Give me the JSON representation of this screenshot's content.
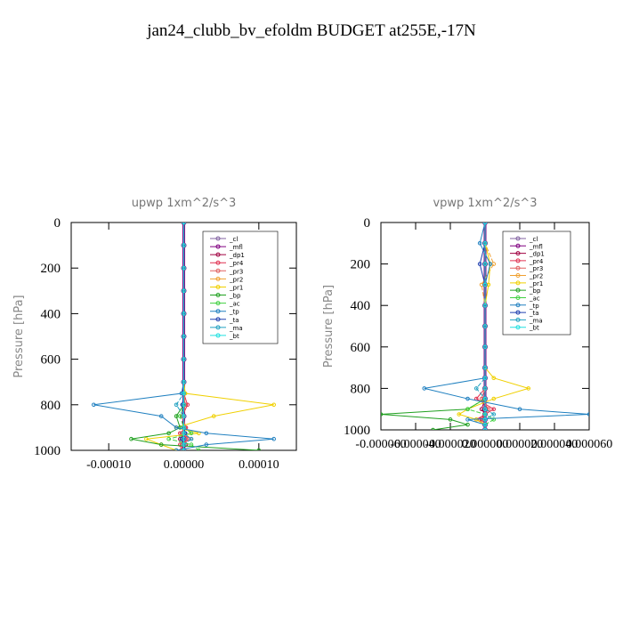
{
  "title": "jan24_clubb_bv_efoldm  BUDGET at255E,-17N",
  "chart_data": [
    {
      "type": "line",
      "title": "upwp   1xm^2/s^3",
      "y_label": "Pressure [hPa]",
      "legend": "upper right",
      "xlim": [
        -0.00015,
        0.00015
      ],
      "xticks": [
        {
          "value": -0.0001,
          "label": "-0.00010"
        },
        {
          "value": 0,
          "label": "0.00000"
        },
        {
          "value": 0.0001,
          "label": "0.00010"
        }
      ],
      "ylim": [
        1000,
        0
      ],
      "yticks": [
        0,
        200,
        400,
        600,
        800,
        1000
      ],
      "y": [
        0,
        100,
        200,
        300,
        400,
        500,
        600,
        700,
        750,
        800,
        850,
        900,
        925,
        950,
        975,
        1000
      ],
      "series": [
        {
          "name": "_cl",
          "color": "#8060a0",
          "values": [
            0,
            0,
            0,
            0,
            0,
            0,
            0,
            0,
            0,
            0,
            0,
            0,
            0,
            0,
            0,
            0
          ]
        },
        {
          "name": "_mfl",
          "color": "#800080",
          "values": [
            0,
            0,
            0,
            0,
            0,
            0,
            0,
            0,
            0,
            0,
            0,
            0,
            0,
            0,
            0,
            0
          ]
        },
        {
          "name": "_dp1",
          "color": "#a00040",
          "values": [
            0,
            0,
            0,
            0,
            0,
            0,
            0,
            0,
            0,
            0,
            0,
            1e-06,
            0,
            -5e-06,
            3e-06,
            0
          ]
        },
        {
          "name": "_pr4",
          "color": "#e03050",
          "values": [
            0,
            0,
            0,
            0,
            0,
            0,
            0,
            0,
            0,
            5e-06,
            -2e-06,
            3e-06,
            -5e-06,
            1e-05,
            -5e-06,
            -3e-06
          ]
        },
        {
          "name": "_pr3",
          "color": "#e06060",
          "values": [
            0,
            0,
            0,
            0,
            0,
            0,
            0,
            0,
            0,
            2e-06,
            -1e-06,
            2e-06,
            -3e-06,
            6e-06,
            -3e-06,
            -2e-06
          ]
        },
        {
          "name": "_pr2",
          "color": "#f0a030",
          "values": [
            0,
            0,
            0,
            0,
            0,
            0,
            0,
            0,
            1e-06,
            0,
            0,
            0,
            0,
            -3e-06,
            0,
            0
          ]
        },
        {
          "name": "_pr1",
          "color": "#f0d000",
          "values": [
            0,
            0,
            0,
            0,
            0,
            0,
            0,
            0,
            2e-06,
            0.00012,
            4e-05,
            -1e-05,
            2e-05,
            -5e-05,
            -3e-05,
            -1e-05
          ]
        },
        {
          "name": "_bp",
          "color": "#20a020",
          "values": [
            0,
            0,
            0,
            0,
            0,
            0,
            0,
            0,
            0,
            0,
            -1e-05,
            -5e-06,
            -2e-05,
            -7e-05,
            -3e-05,
            0.0001
          ]
        },
        {
          "name": "_ac",
          "color": "#40d040",
          "values": [
            0,
            0,
            0,
            0,
            0,
            0,
            0,
            0,
            0,
            0,
            -5e-06,
            0,
            1e-05,
            -2e-05,
            1e-05,
            2e-05
          ]
        },
        {
          "name": "_tp",
          "color": "#2080c0",
          "values": [
            0,
            0,
            0,
            0,
            0,
            0,
            0,
            0,
            -3e-06,
            -0.00012,
            -3e-05,
            -1e-05,
            3e-05,
            0.00012,
            3e-05,
            -1e-05
          ]
        },
        {
          "name": "_ta",
          "color": "#2040b0",
          "values": [
            0,
            0,
            0,
            0,
            0,
            0,
            0,
            0,
            0,
            -2e-06,
            0,
            0,
            2e-06,
            -3e-06,
            0,
            0
          ]
        },
        {
          "name": "_ma",
          "color": "#20a0c0",
          "values": [
            0,
            0,
            0,
            0,
            0,
            0,
            0,
            0,
            0,
            -1e-05,
            0,
            0,
            0,
            1e-05,
            0,
            0
          ]
        },
        {
          "name": "_bt",
          "color": "#20e0e0",
          "values": [
            0,
            0,
            0,
            0,
            0,
            0,
            0,
            0,
            0,
            0,
            0,
            0,
            0,
            0,
            0,
            0
          ]
        }
      ]
    },
    {
      "type": "line",
      "title": "vpwp   1xm^2/s^3",
      "y_label": "Pressure [hPa]",
      "legend": "upper right",
      "xlim": [
        -6e-05,
        6e-05
      ],
      "xticks": [
        {
          "value": -6e-05,
          "label": "-0.000060"
        },
        {
          "value": -4e-05,
          "label": "-0.000040"
        },
        {
          "value": -2e-05,
          "label": "-0.000020"
        },
        {
          "value": 0,
          "label": "0.000000"
        },
        {
          "value": 2e-05,
          "label": "0.000020"
        },
        {
          "value": 4e-05,
          "label": "0.000040"
        },
        {
          "value": 6e-05,
          "label": "0.000060"
        }
      ],
      "ylim": [
        1000,
        0
      ],
      "yticks": [
        0,
        200,
        400,
        600,
        800,
        1000
      ],
      "y": [
        0,
        100,
        200,
        300,
        400,
        500,
        600,
        700,
        750,
        800,
        850,
        900,
        925,
        950,
        975,
        1000
      ],
      "series": [
        {
          "name": "_cl",
          "color": "#8060a0",
          "values": [
            0,
            0,
            0,
            0,
            0,
            0,
            0,
            0,
            0,
            0,
            0,
            0,
            0,
            0,
            0,
            0
          ]
        },
        {
          "name": "_mfl",
          "color": "#800080",
          "values": [
            0,
            0,
            0,
            0,
            0,
            0,
            0,
            0,
            0,
            0,
            0,
            0,
            0,
            0,
            0,
            0
          ]
        },
        {
          "name": "_dp1",
          "color": "#a00040",
          "values": [
            0,
            0,
            0,
            0,
            0,
            0,
            0,
            0,
            0,
            0,
            0,
            -2e-06,
            0,
            -3e-06,
            0,
            0
          ]
        },
        {
          "name": "_pr4",
          "color": "#e03050",
          "values": [
            0,
            0,
            0,
            0,
            0,
            0,
            0,
            0,
            0,
            0,
            -5e-06,
            5e-06,
            0,
            -5e-06,
            0,
            0
          ]
        },
        {
          "name": "_pr3",
          "color": "#e06060",
          "values": [
            0,
            0,
            0,
            0,
            0,
            0,
            0,
            0,
            0,
            0,
            -2e-06,
            2e-06,
            0,
            -2e-06,
            0,
            0
          ]
        },
        {
          "name": "_pr2",
          "color": "#f0a030",
          "values": [
            0,
            0,
            5e-06,
            -2e-06,
            0,
            0,
            0,
            0,
            0,
            0,
            0,
            0,
            0,
            0,
            0,
            0
          ]
        },
        {
          "name": "_pr1",
          "color": "#f0d000",
          "values": [
            0,
            0,
            3e-06,
            2e-06,
            0,
            0,
            0,
            0,
            5e-06,
            2.5e-05,
            5e-06,
            -1e-05,
            -1.5e-05,
            -5e-06,
            0,
            0
          ]
        },
        {
          "name": "_bp",
          "color": "#20a020",
          "values": [
            0,
            0,
            0,
            0,
            0,
            0,
            0,
            0,
            0,
            0,
            0,
            -1e-05,
            -6e-05,
            -2e-05,
            -1e-05,
            -3e-05
          ]
        },
        {
          "name": "_ac",
          "color": "#40d040",
          "values": [
            0,
            0,
            0,
            0,
            0,
            0,
            0,
            0,
            0,
            0,
            0,
            -1e-05,
            0,
            5e-06,
            0,
            0
          ]
        },
        {
          "name": "_tp",
          "color": "#2080c0",
          "values": [
            0,
            -3e-06,
            3e-06,
            0,
            0,
            0,
            0,
            0,
            0,
            -3.5e-05,
            -1e-05,
            2e-05,
            6e-05,
            -1e-05,
            0,
            0
          ]
        },
        {
          "name": "_ta",
          "color": "#2040b0",
          "values": [
            0,
            0,
            -3e-06,
            0,
            0,
            0,
            0,
            0,
            0,
            0,
            0,
            0,
            0,
            0,
            0,
            0
          ]
        },
        {
          "name": "_ma",
          "color": "#20a0c0",
          "values": [
            0,
            0,
            0,
            0,
            0,
            0,
            0,
            0,
            0,
            -5e-06,
            0,
            0,
            5e-06,
            0,
            0,
            0
          ]
        },
        {
          "name": "_bt",
          "color": "#20e0e0",
          "values": [
            0,
            0,
            0,
            0,
            0,
            0,
            0,
            0,
            0,
            0,
            0,
            0,
            0,
            0,
            0,
            0
          ]
        }
      ]
    }
  ]
}
